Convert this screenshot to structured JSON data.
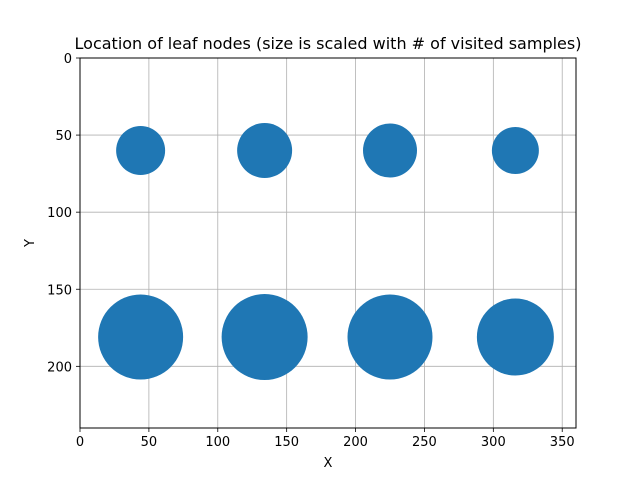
{
  "chart_data": {
    "type": "scatter",
    "title": "Location of leaf nodes (size is scaled with # of visited samples)",
    "xlabel": "X",
    "ylabel": "Y",
    "xlim": [
      0,
      360
    ],
    "ylim": [
      240,
      0
    ],
    "y_inverted": true,
    "grid": true,
    "x_ticks": [
      0,
      50,
      100,
      150,
      200,
      250,
      300,
      350
    ],
    "y_ticks": [
      0,
      50,
      100,
      150,
      200
    ],
    "colors": {
      "marker": "#1f77b4",
      "grid": "#b0b0b0",
      "axes": "#000000"
    },
    "series": [
      {
        "points": [
          {
            "x": 44,
            "y": 60,
            "r": 24.5
          },
          {
            "x": 134,
            "y": 60,
            "r": 27.5
          },
          {
            "x": 225,
            "y": 60,
            "r": 27
          },
          {
            "x": 316,
            "y": 60,
            "r": 23.5
          },
          {
            "x": 44,
            "y": 181,
            "r": 42.5
          },
          {
            "x": 134,
            "y": 181,
            "r": 43
          },
          {
            "x": 225,
            "y": 181,
            "r": 42.5
          },
          {
            "x": 316,
            "y": 181,
            "r": 38.5
          }
        ]
      }
    ]
  }
}
